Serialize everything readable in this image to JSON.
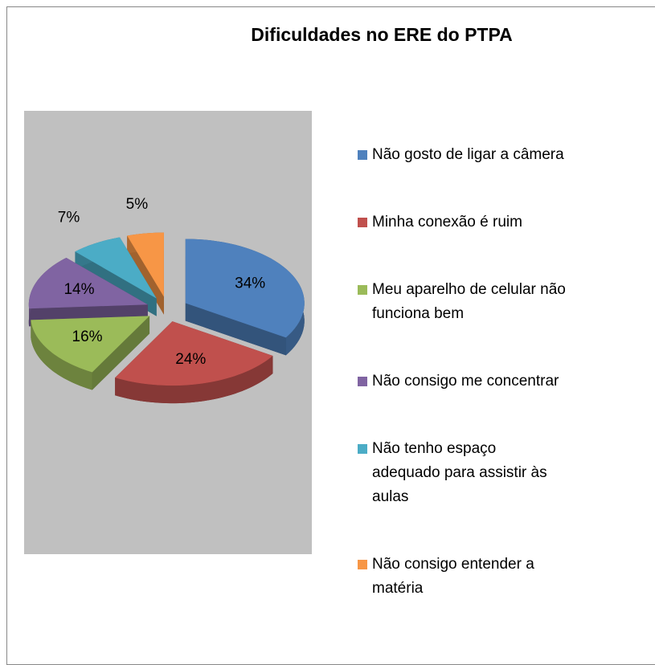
{
  "chart_data": {
    "type": "pie",
    "title": "Dificuldades no ERE do PTPA",
    "categories": [
      "Não gosto de ligar a câmera",
      "Minha conexão é ruim",
      "Meu aparelho de celular não funciona bem",
      "Não consigo me concentrar",
      "Não tenho espaço adequado para assistir às aulas",
      "Não consigo entender a matéria"
    ],
    "values": [
      34,
      24,
      16,
      14,
      7,
      5
    ],
    "value_labels": [
      "34%",
      "24%",
      "16%",
      "14%",
      "7%",
      "5%"
    ],
    "colors": [
      "#4f81bd",
      "#c0504d",
      "#9bbb59",
      "#8064a2",
      "#4bacc6",
      "#f79646"
    ]
  }
}
